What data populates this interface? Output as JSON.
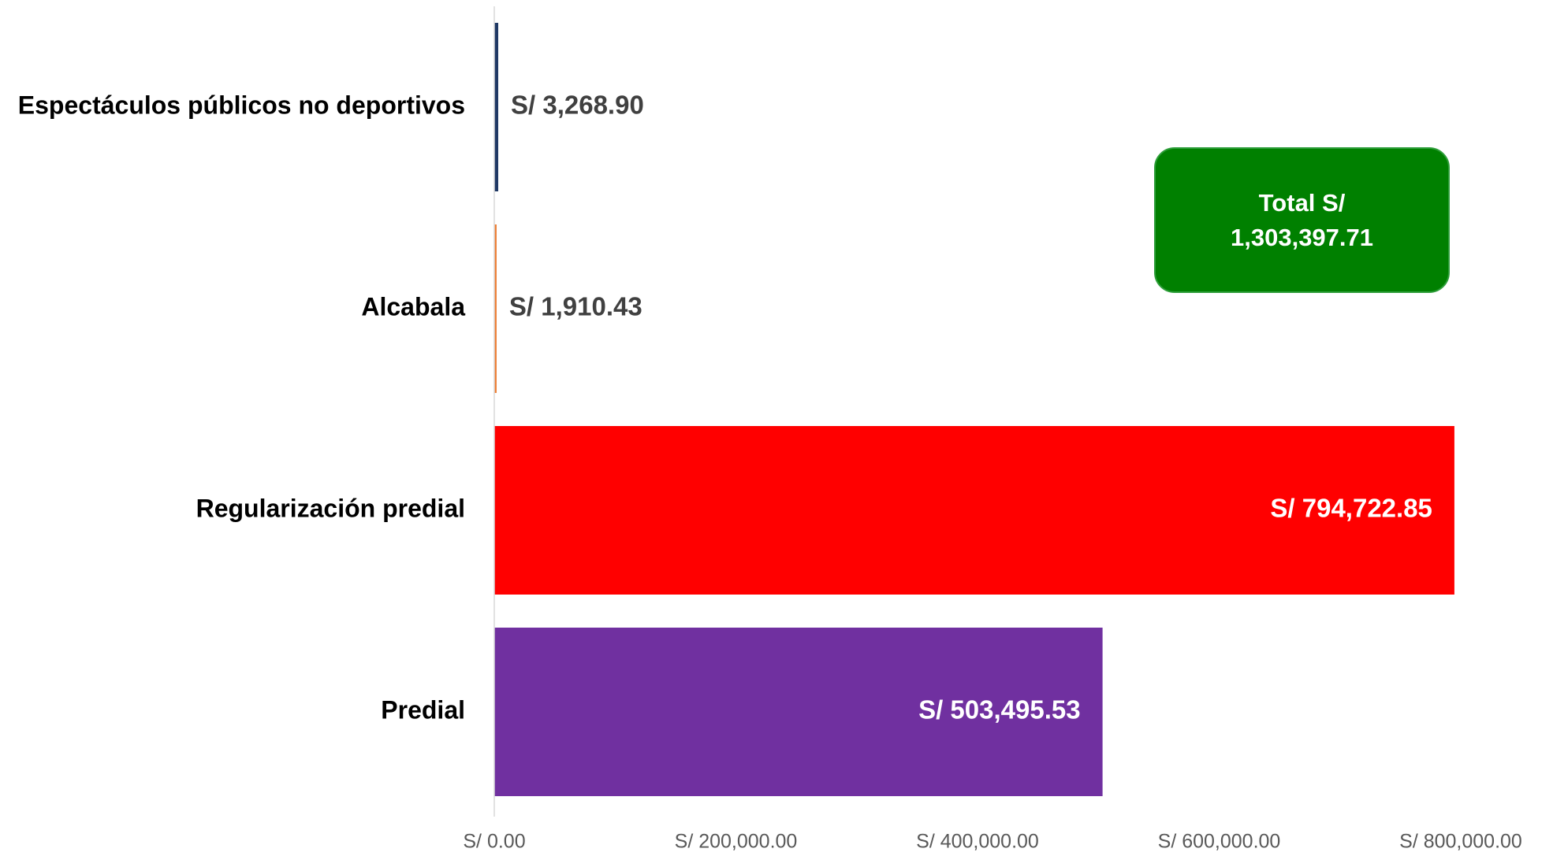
{
  "chart_data": {
    "type": "bar",
    "orientation": "horizontal",
    "categories": [
      "Espectáculos públicos no deportivos",
      "Alcabala",
      "Regularización predial",
      "Predial"
    ],
    "values": [
      3268.9,
      1910.43,
      794722.85,
      503495.53
    ],
    "value_labels": [
      "S/ 3,268.90",
      "S/ 1,910.43",
      "S/ 794,722.85",
      "S/ 503,495.53"
    ],
    "colors": [
      "#1f3864",
      "#ed7d31",
      "#ff0000",
      "#7030a0"
    ],
    "xlim": [
      0,
      800000
    ],
    "xticks": [
      {
        "value": 0,
        "label": "S/ 0.00"
      },
      {
        "value": 200000,
        "label": "S/ 200,000.00"
      },
      {
        "value": 400000,
        "label": "S/ 400,000.00"
      },
      {
        "value": 600000,
        "label": "S/ 600,000.00"
      },
      {
        "value": 800000,
        "label": "S/ 800,000.00"
      }
    ],
    "annotation": "Total S/ 1,303,397.71",
    "grid": false
  }
}
